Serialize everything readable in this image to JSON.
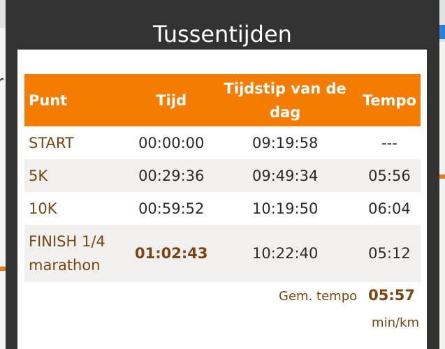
{
  "map": {
    "route_color": "#ec7a1c",
    "text_fragment": "r"
  },
  "dialog": {
    "title": "Tussentijden",
    "header_color": "#f47c00",
    "value_color": "#7a4510"
  },
  "table": {
    "headers": {
      "point": "Punt",
      "time": "Tijd",
      "time_of_day": "Tijdstip van de dag",
      "pace": "Tempo"
    },
    "rows": [
      {
        "point": "START",
        "time": "00:00:00",
        "time_of_day": "09:19:58",
        "pace": "---"
      },
      {
        "point": "5K",
        "time": "00:29:36",
        "time_of_day": "09:49:34",
        "pace": "05:56"
      },
      {
        "point": "10K",
        "time": "00:59:52",
        "time_of_day": "10:19:50",
        "pace": "06:04"
      },
      {
        "point": "FINISH 1/4 marathon",
        "time": "01:02:43",
        "time_of_day": "10:22:40",
        "pace": "05:12"
      }
    ]
  },
  "summary": {
    "avg_label": "Gem. tempo",
    "avg_value": "05:57",
    "unit": "min/km"
  }
}
